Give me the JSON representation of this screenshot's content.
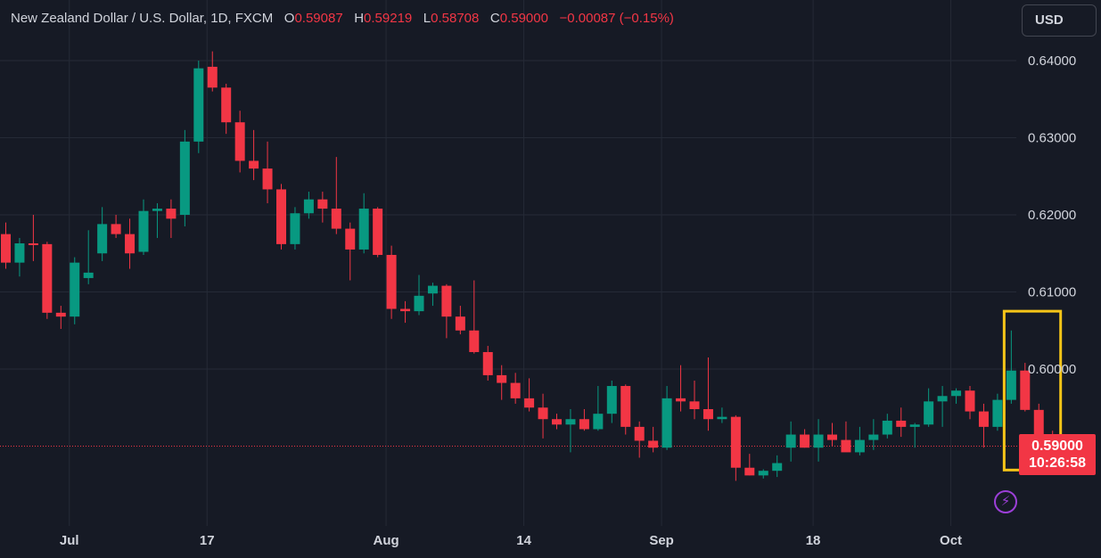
{
  "header": {
    "symbol": "New Zealand Dollar / U.S. Dollar, 1D, FXCM",
    "open_label": "O",
    "open": "0.59087",
    "high_label": "H",
    "high": "0.59219",
    "low_label": "L",
    "low": "0.58708",
    "close_label": "C",
    "close": "0.59000",
    "change": "−0.00087",
    "change_pct": "(−0.15%)"
  },
  "currency_button": "USD",
  "last_price": {
    "price": "0.59000",
    "countdown": "10:26:58"
  },
  "colors": {
    "up": "#089981",
    "down": "#f23645",
    "highlight": "#f5c518",
    "background": "#161a25",
    "text": "#d1d4dc"
  },
  "icons": {
    "alert": "lightning-bolt-icon"
  },
  "chart_data": {
    "type": "candlestick",
    "title": "",
    "ylim": [
      0.5855,
      0.6425
    ],
    "y_ticks": [
      "0.64000",
      "0.63000",
      "0.62000",
      "0.61000",
      "0.60000"
    ],
    "x_tick_labels": [
      "Jul",
      "17",
      "Aug",
      "14",
      "Sep",
      "18",
      "Oct"
    ],
    "x_tick_positions": [
      5,
      15,
      28,
      38,
      48,
      59,
      69
    ],
    "candles": [
      [
        0.6175,
        0.619,
        0.613,
        0.6138
      ],
      [
        0.6138,
        0.617,
        0.612,
        0.6163
      ],
      [
        0.6163,
        0.62,
        0.614,
        0.6162
      ],
      [
        0.6162,
        0.6165,
        0.6065,
        0.6073
      ],
      [
        0.6073,
        0.6082,
        0.6052,
        0.6068
      ],
      [
        0.6068,
        0.6145,
        0.6058,
        0.6138
      ],
      [
        0.6118,
        0.618,
        0.611,
        0.6125
      ],
      [
        0.615,
        0.621,
        0.614,
        0.6188
      ],
      [
        0.6188,
        0.62,
        0.617,
        0.6175
      ],
      [
        0.6175,
        0.6195,
        0.613,
        0.615
      ],
      [
        0.6152,
        0.622,
        0.6148,
        0.6205
      ],
      [
        0.6205,
        0.6215,
        0.617,
        0.6208
      ],
      [
        0.6208,
        0.622,
        0.617,
        0.6195
      ],
      [
        0.62,
        0.631,
        0.6185,
        0.6295
      ],
      [
        0.6295,
        0.64,
        0.628,
        0.639
      ],
      [
        0.6392,
        0.6412,
        0.636,
        0.6365
      ],
      [
        0.6365,
        0.637,
        0.6305,
        0.632
      ],
      [
        0.632,
        0.6335,
        0.6255,
        0.627
      ],
      [
        0.627,
        0.631,
        0.6245,
        0.626
      ],
      [
        0.626,
        0.6295,
        0.6215,
        0.6233
      ],
      [
        0.6233,
        0.624,
        0.6155,
        0.6162
      ],
      [
        0.6162,
        0.621,
        0.6155,
        0.6202
      ],
      [
        0.6202,
        0.623,
        0.6195,
        0.622
      ],
      [
        0.622,
        0.623,
        0.619,
        0.6208
      ],
      [
        0.6208,
        0.6275,
        0.6175,
        0.6182
      ],
      [
        0.6182,
        0.619,
        0.6115,
        0.6155
      ],
      [
        0.6155,
        0.6228,
        0.615,
        0.6208
      ],
      [
        0.6208,
        0.621,
        0.6145,
        0.6148
      ],
      [
        0.6148,
        0.616,
        0.6065,
        0.6078
      ],
      [
        0.6078,
        0.6088,
        0.606,
        0.6075
      ],
      [
        0.6075,
        0.6122,
        0.607,
        0.6095
      ],
      [
        0.6098,
        0.6112,
        0.6082,
        0.6108
      ],
      [
        0.6108,
        0.611,
        0.604,
        0.6068
      ],
      [
        0.6068,
        0.6082,
        0.6045,
        0.605
      ],
      [
        0.605,
        0.6115,
        0.602,
        0.6022
      ],
      [
        0.6022,
        0.603,
        0.5985,
        0.5992
      ],
      [
        0.5992,
        0.6005,
        0.596,
        0.5982
      ],
      [
        0.5982,
        0.5995,
        0.5955,
        0.5962
      ],
      [
        0.5962,
        0.5988,
        0.5945,
        0.595
      ],
      [
        0.595,
        0.5968,
        0.591,
        0.5935
      ],
      [
        0.5935,
        0.5942,
        0.5922,
        0.5928
      ],
      [
        0.5928,
        0.5948,
        0.5892,
        0.5935
      ],
      [
        0.5935,
        0.5948,
        0.592,
        0.5922
      ],
      [
        0.5922,
        0.5978,
        0.592,
        0.5942
      ],
      [
        0.5942,
        0.5985,
        0.593,
        0.5978
      ],
      [
        0.5978,
        0.598,
        0.5915,
        0.5925
      ],
      [
        0.5925,
        0.5932,
        0.5885,
        0.5907
      ],
      [
        0.5907,
        0.5925,
        0.5892,
        0.5898
      ],
      [
        0.5898,
        0.5978,
        0.5895,
        0.5962
      ],
      [
        0.5962,
        0.6005,
        0.5945,
        0.5958
      ],
      [
        0.5958,
        0.5985,
        0.5935,
        0.5948
      ],
      [
        0.5948,
        0.6015,
        0.592,
        0.5935
      ],
      [
        0.5935,
        0.595,
        0.593,
        0.5938
      ],
      [
        0.5938,
        0.594,
        0.5855,
        0.5872
      ],
      [
        0.5872,
        0.589,
        0.5862,
        0.5862
      ],
      [
        0.5862,
        0.587,
        0.5858,
        0.5868
      ],
      [
        0.5868,
        0.5888,
        0.586,
        0.5878
      ],
      [
        0.5898,
        0.5932,
        0.588,
        0.5915
      ],
      [
        0.5915,
        0.5922,
        0.5898,
        0.5898
      ],
      [
        0.5898,
        0.5935,
        0.588,
        0.5915
      ],
      [
        0.5915,
        0.593,
        0.59,
        0.5908
      ],
      [
        0.5908,
        0.5932,
        0.5895,
        0.5892
      ],
      [
        0.5892,
        0.5925,
        0.5888,
        0.5908
      ],
      [
        0.5908,
        0.5935,
        0.5895,
        0.5915
      ],
      [
        0.5915,
        0.5942,
        0.591,
        0.5933
      ],
      [
        0.5933,
        0.595,
        0.5912,
        0.5925
      ],
      [
        0.5925,
        0.593,
        0.5898,
        0.5928
      ],
      [
        0.5928,
        0.5975,
        0.5925,
        0.5958
      ],
      [
        0.5958,
        0.5978,
        0.5925,
        0.5965
      ],
      [
        0.5965,
        0.5975,
        0.5955,
        0.5972
      ],
      [
        0.5972,
        0.5978,
        0.5935,
        0.5945
      ],
      [
        0.5945,
        0.5955,
        0.5898,
        0.5925
      ],
      [
        0.5925,
        0.5968,
        0.592,
        0.596
      ],
      [
        0.596,
        0.605,
        0.5955,
        0.5998
      ],
      [
        0.5998,
        0.6008,
        0.5945,
        0.5947
      ],
      [
        0.5947,
        0.5955,
        0.5895,
        0.591
      ],
      [
        0.591,
        0.592,
        0.5872,
        0.59
      ]
    ],
    "last_price": 0.59,
    "highlight": {
      "from_index": 73,
      "to_index": 76,
      "ylim": [
        0.5869,
        0.6075
      ]
    }
  }
}
